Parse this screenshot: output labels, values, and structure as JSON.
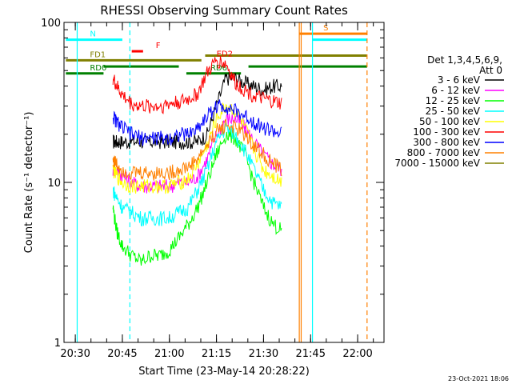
{
  "chart_data": {
    "type": "line",
    "title": "RHESSI Observing Summary Count Rates",
    "xlabel": "Start Time (23-May-14 20:28:22)",
    "ylabel": "Count Rate (s⁻¹ detector⁻¹)",
    "ylog": true,
    "ylim": [
      1,
      100
    ],
    "xlim_minutes": [
      20.5,
      22.1
    ],
    "x_unit": "hours",
    "x_ticks": [
      "20:30",
      "20:45",
      "21:00",
      "21:15",
      "21:30",
      "21:45",
      "22:00"
    ],
    "y_ticks": [
      "1",
      "10",
      "100"
    ],
    "legend_title_1": "Det 1,3,4,5,6,9,",
    "legend_title_2": "Att 0",
    "legend_position": "right",
    "timestamp": "23-Oct-2021 18:06",
    "series": [
      {
        "name": "3 - 6 keV",
        "color": "#000000",
        "x": [
          20.7,
          20.72,
          20.75,
          20.8,
          20.85,
          20.9,
          20.95,
          21.0,
          21.05,
          21.1,
          21.15,
          21.2,
          21.25,
          21.3,
          21.35,
          21.4,
          21.45,
          21.5,
          21.55,
          21.6
        ],
        "values": [
          18,
          18,
          18,
          18,
          18,
          18,
          18,
          18,
          18,
          18,
          18,
          20,
          30,
          45,
          45,
          42,
          40,
          38,
          40,
          40
        ]
      },
      {
        "name": "6 - 12 keV",
        "color": "#ff00ff",
        "x": [
          20.7,
          20.72,
          20.75,
          20.8,
          20.85,
          20.9,
          20.95,
          21.0,
          21.05,
          21.1,
          21.15,
          21.2,
          21.25,
          21.3,
          21.35,
          21.4,
          21.45,
          21.5,
          21.55,
          21.6
        ],
        "values": [
          12,
          12,
          11,
          10,
          9.5,
          9.5,
          9.5,
          9.5,
          10,
          10,
          11,
          14,
          20,
          25,
          25,
          22,
          18,
          15,
          13,
          12
        ]
      },
      {
        "name": "12 - 25 keV",
        "color": "#00ff00",
        "x": [
          20.7,
          20.72,
          20.75,
          20.8,
          20.85,
          20.9,
          20.95,
          21.0,
          21.05,
          21.1,
          21.15,
          21.2,
          21.25,
          21.3,
          21.35,
          21.4,
          21.45,
          21.5,
          21.55,
          21.6
        ],
        "values": [
          7,
          5,
          4,
          3.5,
          3.2,
          3.5,
          3.5,
          3.8,
          4.5,
          5.5,
          7,
          10,
          15,
          20,
          19,
          15,
          10,
          7,
          5.5,
          5
        ]
      },
      {
        "name": "25 - 50 keV",
        "color": "#00ffff",
        "x": [
          20.7,
          20.72,
          20.75,
          20.8,
          20.85,
          20.9,
          20.95,
          21.0,
          21.05,
          21.1,
          21.15,
          21.2,
          21.25,
          21.3,
          21.35,
          21.4,
          21.45,
          21.5,
          21.55,
          21.6
        ],
        "values": [
          9,
          8,
          7,
          6.5,
          6,
          6,
          6,
          6,
          6.5,
          7,
          9,
          12,
          18,
          22,
          20,
          16,
          12,
          9,
          7.5,
          7
        ]
      },
      {
        "name": "50 - 100 keV",
        "color": "#ffff00",
        "x": [
          20.7,
          20.72,
          20.75,
          20.8,
          20.85,
          20.9,
          20.95,
          21.0,
          21.05,
          21.1,
          21.15,
          21.2,
          21.25,
          21.3,
          21.35,
          21.4,
          21.45,
          21.5,
          21.55,
          21.6
        ],
        "values": [
          12,
          11,
          10,
          9.5,
          9.5,
          9.5,
          9.5,
          9.5,
          10,
          10.5,
          13,
          17,
          25,
          30,
          28,
          22,
          16,
          12,
          11,
          10
        ]
      },
      {
        "name": "100 - 300 keV",
        "color": "#ff0000",
        "x": [
          20.7,
          20.72,
          20.75,
          20.8,
          20.85,
          20.9,
          20.95,
          21.0,
          21.05,
          21.1,
          21.15,
          21.2,
          21.25,
          21.3,
          21.35,
          21.4,
          21.45,
          21.5,
          21.55,
          21.6
        ],
        "values": [
          45,
          40,
          35,
          31,
          30,
          30,
          30,
          31,
          32,
          33,
          36,
          48,
          58,
          55,
          42,
          38,
          35,
          33,
          32,
          31
        ]
      },
      {
        "name": "300 - 800 keV",
        "color": "#0000ff",
        "x": [
          20.7,
          20.72,
          20.75,
          20.8,
          20.85,
          20.9,
          20.95,
          21.0,
          21.05,
          21.1,
          21.15,
          21.2,
          21.25,
          21.3,
          21.35,
          21.4,
          21.45,
          21.5,
          21.55,
          21.6
        ],
        "values": [
          26,
          24,
          22,
          20,
          19,
          19,
          19,
          19,
          20,
          20,
          22,
          26,
          30,
          30,
          28,
          26,
          24,
          22,
          21,
          20
        ]
      },
      {
        "name": "800 - 7000 keV",
        "color": "#ff8000",
        "x": [
          20.7,
          20.72,
          20.75,
          20.8,
          20.85,
          20.9,
          20.95,
          21.0,
          21.05,
          21.1,
          21.15,
          21.2,
          21.25,
          21.3,
          21.35,
          21.4,
          21.45,
          21.5,
          21.55,
          21.6
        ],
        "values": [
          14,
          13,
          12,
          11.5,
          11.5,
          11.5,
          11.5,
          11.5,
          12,
          12.5,
          14,
          17,
          21,
          23,
          22,
          20,
          17,
          15,
          13,
          12
        ]
      },
      {
        "name": "7000 - 15000 keV",
        "color": "#808000",
        "x": [],
        "values": []
      }
    ],
    "flags": [
      {
        "label": "N",
        "color": "#00ffff",
        "x": [
          20.45,
          20.75
        ],
        "level": 78
      },
      {
        "label": "F",
        "color": "#ff0000",
        "x": [
          20.8,
          20.86
        ],
        "level": 66
      },
      {
        "label": "S",
        "color": "#ff8000",
        "x": [
          21.69,
          22.05
        ],
        "level": 85
      },
      {
        "label": "",
        "color": "#00ffff",
        "x": [
          21.76,
          22.05
        ],
        "level": 78
      },
      {
        "label": "FD1",
        "color": "#808000",
        "x": [
          20.45,
          21.17
        ],
        "level": 58
      },
      {
        "label": "",
        "color": "#808000",
        "x": [
          21.19,
          22.05
        ],
        "level": 62
      },
      {
        "label": "RD0",
        "color": "#008000",
        "x": [
          20.45,
          20.65
        ],
        "level": 48
      },
      {
        "label": "",
        "color": "#008000",
        "x": [
          20.65,
          21.05
        ],
        "level": 53
      },
      {
        "label": "RD6",
        "color": "#008000",
        "x": [
          21.09,
          21.38
        ],
        "level": 48
      },
      {
        "label": "",
        "color": "#008000",
        "x": [
          21.42,
          22.05
        ],
        "level": 53
      },
      {
        "label": "ED2",
        "color": "#ff0000",
        "x": [],
        "level": 60
      }
    ],
    "vlines": [
      {
        "x": 20.51,
        "color": "#00ffff",
        "style": "solid"
      },
      {
        "x": 20.79,
        "color": "#00ffff",
        "style": "dashed"
      },
      {
        "x": 21.69,
        "color": "#ff8000",
        "style": "solid"
      },
      {
        "x": 21.7,
        "color": "#ff8000",
        "style": "solid"
      },
      {
        "x": 21.76,
        "color": "#00ffff",
        "style": "solid"
      },
      {
        "x": 22.05,
        "color": "#ff8000",
        "style": "dashed"
      }
    ]
  }
}
